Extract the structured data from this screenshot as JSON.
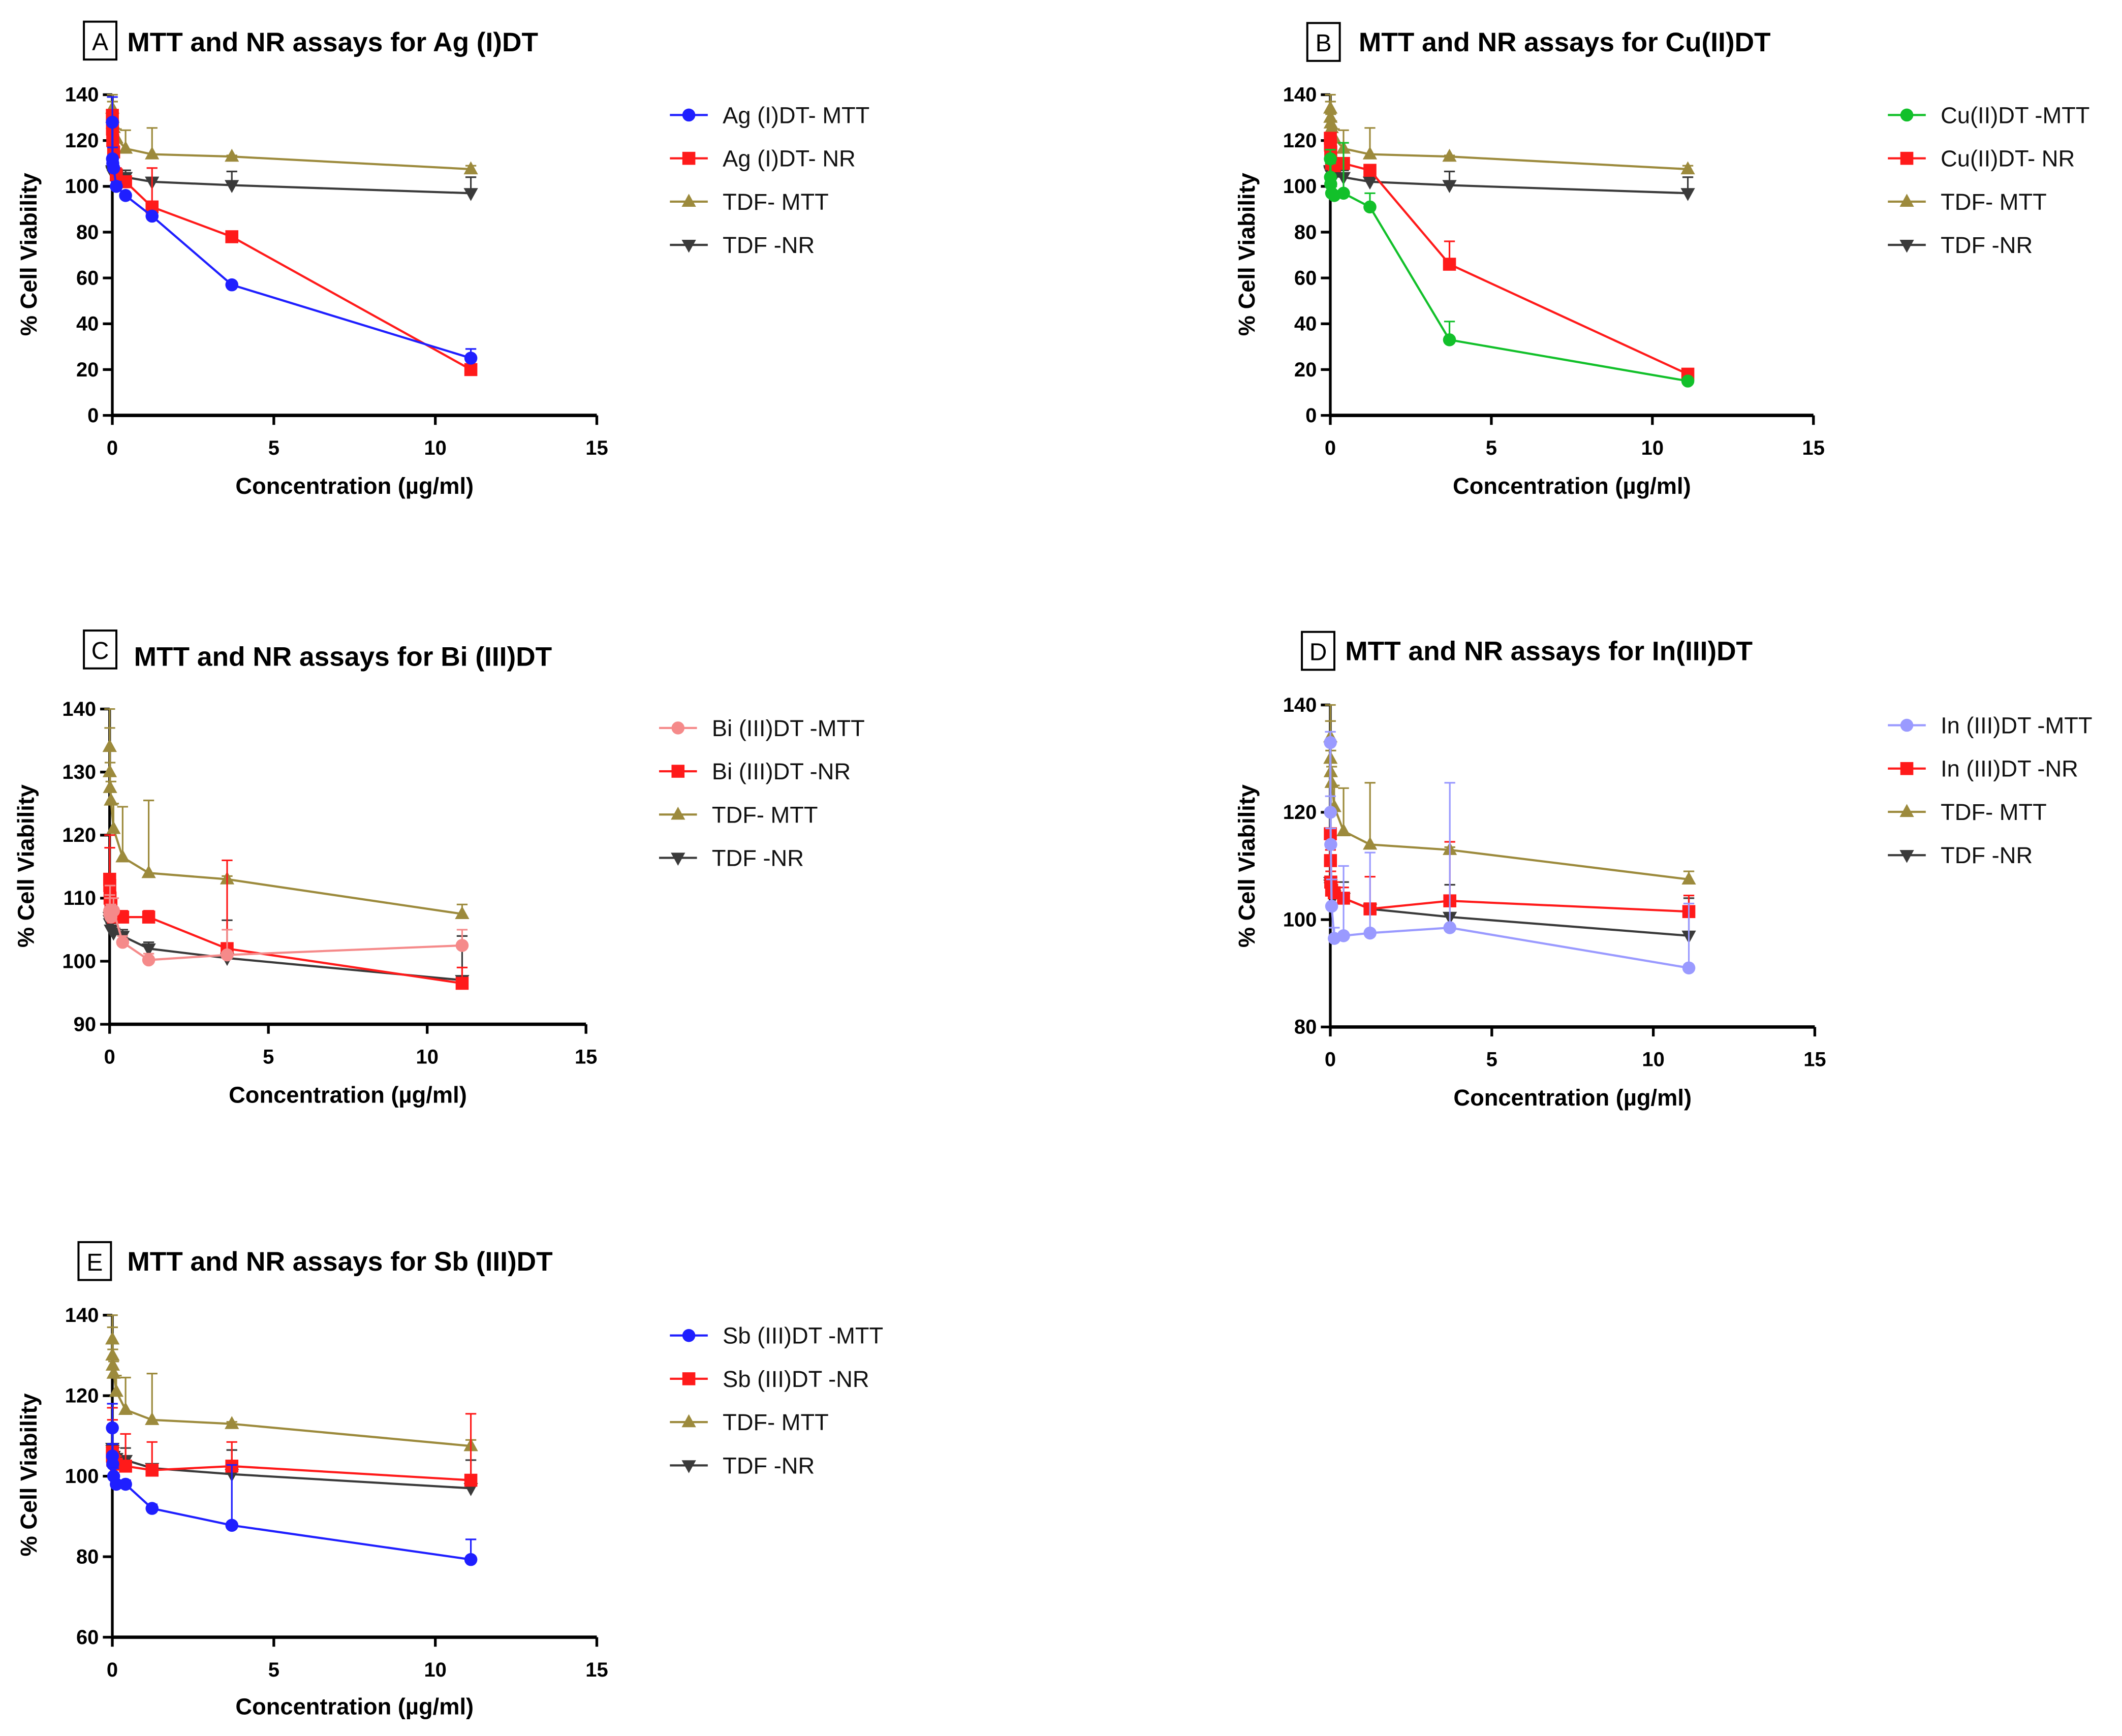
{
  "chart_data": [
    {
      "type": "line",
      "panel_letter": "A",
      "title": "MTT and NR assays for Ag (I)DT",
      "xlabel": "Concentration (µg/ml)",
      "ylabel": "% Cell Viability",
      "xlim": [
        0,
        15
      ],
      "ylim": [
        0,
        140
      ],
      "xticks": [
        "0",
        "5",
        "10",
        "15"
      ],
      "yticks": [
        "0",
        "20",
        "40",
        "60",
        "80",
        "100",
        "120",
        "140"
      ],
      "x": [
        0.0015,
        0.0046,
        0.0137,
        0.041,
        0.123,
        0.41,
        1.23,
        3.7,
        11.1
      ],
      "legend_position": "right",
      "series": [
        {
          "name": "Ag (I)DT- MTT",
          "color": "#1f1fff",
          "marker": "circle",
          "values": [
            128,
            112,
            110,
            108,
            100,
            96,
            87,
            57,
            25
          ],
          "err": [
            11,
            5,
            3,
            2,
            2,
            1,
            1,
            1,
            4
          ]
        },
        {
          "name": "Ag (I)DT- NR",
          "color": "#ff1a1a",
          "marker": "square",
          "values": [
            131,
            125,
            120,
            115,
            105,
            102,
            91,
            78,
            20
          ],
          "err": [
            2,
            6,
            3,
            2,
            3,
            2,
            17,
            2,
            1
          ]
        },
        {
          "name": "TDF- MTT",
          "color": "#9c8a3c",
          "marker": "triangle-up",
          "values": [
            134,
            130,
            127.5,
            125.5,
            121,
            116.5,
            114,
            113,
            107.5
          ],
          "err": [
            6,
            7,
            4,
            3,
            4,
            8,
            11.5,
            0.5,
            1.5
          ]
        },
        {
          "name": "TDF -NR",
          "color": "#3a3a3a",
          "marker": "triangle-down",
          "values": [
            107,
            106.5,
            106,
            105,
            104.5,
            104,
            102,
            100.5,
            97
          ],
          "err": [
            1,
            1,
            1,
            1,
            1,
            3,
            1,
            6,
            7
          ]
        }
      ]
    },
    {
      "type": "line",
      "panel_letter": "B",
      "title": "MTT and NR assays for Cu(II)DT",
      "xlabel": "Concentration (µg/ml)",
      "ylabel": "% Cell Viability",
      "xlim": [
        0,
        15
      ],
      "ylim": [
        0,
        140
      ],
      "xticks": [
        "0",
        "5",
        "10",
        "15"
      ],
      "yticks": [
        "0",
        "20",
        "40",
        "60",
        "80",
        "100",
        "120",
        "140"
      ],
      "x": [
        0.0015,
        0.0046,
        0.0137,
        0.041,
        0.123,
        0.41,
        1.23,
        3.7,
        11.1
      ],
      "legend_position": "right",
      "series": [
        {
          "name": "Cu(II)DT -MTT",
          "color": "#12c02a",
          "marker": "circle",
          "values": [
            112,
            104,
            101,
            97,
            96,
            97,
            91,
            33,
            15
          ],
          "err": [
            4,
            6,
            10,
            3,
            2,
            22,
            6,
            8,
            1
          ]
        },
        {
          "name": "Cu(II)DT- NR",
          "color": "#ff1a1a",
          "marker": "square",
          "values": [
            121,
            118,
            115,
            110,
            109,
            110,
            107,
            66,
            18
          ],
          "err": [
            2,
            2,
            2,
            2,
            2,
            2,
            2,
            10,
            1
          ]
        },
        {
          "name": "TDF- MTT",
          "color": "#9c8a3c",
          "marker": "triangle-up",
          "values": [
            134,
            130,
            127.5,
            125.5,
            121,
            116.5,
            114,
            113,
            107.5
          ],
          "err": [
            6,
            7,
            4,
            3,
            4,
            8,
            11.5,
            0.5,
            1.5
          ]
        },
        {
          "name": "TDF -NR",
          "color": "#3a3a3a",
          "marker": "triangle-down",
          "values": [
            107,
            106.5,
            106,
            105,
            104.5,
            104,
            102,
            100.5,
            97
          ],
          "err": [
            1,
            1,
            1,
            1,
            1,
            3,
            1,
            6,
            7
          ]
        }
      ]
    },
    {
      "type": "line",
      "panel_letter": "C",
      "title": "MTT and NR  assays for Bi (III)DT",
      "xlabel": "Concentration (µg/ml)",
      "ylabel": "% Cell Viability",
      "xlim": [
        0,
        15
      ],
      "ylim": [
        90,
        140
      ],
      "xticks": [
        "0",
        "5",
        "10",
        "15"
      ],
      "yticks": [
        "90",
        "100",
        "110",
        "120",
        "130",
        "140"
      ],
      "x": [
        0.0015,
        0.0046,
        0.0137,
        0.041,
        0.123,
        0.41,
        1.23,
        3.7,
        11.1
      ],
      "legend_position": "right",
      "series": [
        {
          "name": "Bi (III)DT -MTT",
          "color": "#f58a8a",
          "marker": "circle",
          "values": [
            108,
            107.5,
            108,
            107,
            108,
            103,
            100.2,
            101,
            102.5
          ],
          "err": [
            2,
            3,
            4,
            2,
            2,
            1,
            1,
            4,
            2.5
          ]
        },
        {
          "name": "Bi (III)DT -NR",
          "color": "#ff1a1a",
          "marker": "square",
          "values": [
            113,
            112,
            110,
            109,
            107,
            107,
            107,
            102,
            96.5
          ],
          "err": [
            7,
            6,
            2,
            2,
            1,
            1,
            1,
            14,
            2.5
          ]
        },
        {
          "name": "TDF- MTT",
          "color": "#9c8a3c",
          "marker": "triangle-up",
          "values": [
            134,
            130,
            127.5,
            125.5,
            121,
            116.5,
            114,
            113,
            107.5
          ],
          "err": [
            6,
            7,
            4,
            3,
            4,
            8,
            11.5,
            0.5,
            1.5
          ]
        },
        {
          "name": "TDF -NR",
          "color": "#3a3a3a",
          "marker": "triangle-down",
          "values": [
            107,
            106.5,
            106,
            105,
            104.5,
            104,
            102,
            100.5,
            97
          ],
          "err": [
            1,
            1,
            1,
            1,
            1,
            1,
            1,
            6,
            7
          ]
        }
      ]
    },
    {
      "type": "line",
      "panel_letter": "D",
      "title": "MTT and NR assays for  In(III)DT",
      "xlabel": "Concentration (µg/ml)",
      "ylabel": "% Cell Viability",
      "xlim": [
        0,
        15
      ],
      "ylim": [
        80,
        140
      ],
      "xticks": [
        "0",
        "5",
        "10",
        "15"
      ],
      "yticks": [
        "80",
        "100",
        "120",
        "140"
      ],
      "x": [
        0.0015,
        0.0046,
        0.0137,
        0.041,
        0.123,
        0.41,
        1.23,
        3.7,
        11.1
      ],
      "legend_position": "right",
      "series": [
        {
          "name": "In (III)DT -MTT",
          "color": "#9a9aff",
          "marker": "circle",
          "values": [
            133,
            120,
            114,
            102.5,
            96.5,
            97,
            97.5,
            98.5,
            91
          ],
          "err": [
            2,
            3,
            3,
            5,
            2,
            13,
            15,
            27,
            12
          ]
        },
        {
          "name": "In (III)DT -NR",
          "color": "#ff1a1a",
          "marker": "square",
          "values": [
            116,
            111,
            107,
            105.5,
            105,
            104,
            102,
            103.5,
            101.5
          ],
          "err": [
            4,
            2,
            2,
            2,
            2,
            2,
            6,
            11,
            3
          ]
        },
        {
          "name": "TDF- MTT",
          "color": "#9c8a3c",
          "marker": "triangle-up",
          "values": [
            134,
            130,
            127.5,
            125.5,
            121,
            116.5,
            114,
            113,
            107.5
          ],
          "err": [
            6,
            7,
            4,
            3,
            4,
            8,
            11.5,
            0.5,
            1.5
          ]
        },
        {
          "name": "TDF -NR",
          "color": "#3a3a3a",
          "marker": "triangle-down",
          "values": [
            107,
            106.5,
            106,
            105,
            104.5,
            104,
            102,
            100.5,
            97
          ],
          "err": [
            1,
            1,
            1,
            1,
            1,
            3,
            1,
            6,
            7
          ]
        }
      ]
    },
    {
      "type": "line",
      "panel_letter": "E",
      "title": "MTT and NR assays for Sb (III)DT",
      "xlabel": "Concentration (µg/ml)",
      "ylabel": "% Cell Viability",
      "xlim": [
        0,
        15
      ],
      "ylim": [
        60,
        140
      ],
      "xticks": [
        "0",
        "5",
        "10",
        "15"
      ],
      "yticks": [
        "60",
        "80",
        "100",
        "120",
        "140"
      ],
      "x": [
        0.0015,
        0.0046,
        0.0137,
        0.041,
        0.123,
        0.41,
        1.23,
        3.7,
        11.1
      ],
      "legend_position": "right",
      "series": [
        {
          "name": "Sb (III)DT -MTT",
          "color": "#1f1fff",
          "marker": "circle",
          "values": [
            112,
            105,
            103,
            100,
            98,
            98,
            92,
            87.8,
            79.3
          ],
          "err": [
            6,
            3,
            5,
            2,
            1,
            1,
            1,
            15,
            5
          ]
        },
        {
          "name": "Sb (III)DT -NR",
          "color": "#ff1a1a",
          "marker": "square",
          "values": [
            106,
            105,
            104,
            104,
            103,
            102.5,
            101.5,
            102.5,
            99
          ],
          "err": [
            11,
            9,
            4,
            3,
            2,
            8,
            7,
            6,
            16.5
          ]
        },
        {
          "name": "TDF- MTT",
          "color": "#9c8a3c",
          "marker": "triangle-up",
          "values": [
            134,
            130,
            127.5,
            125.5,
            121,
            116.5,
            114,
            113,
            107.5
          ],
          "err": [
            6,
            7,
            4,
            3,
            4,
            8,
            11.5,
            0.5,
            1.5
          ]
        },
        {
          "name": "TDF -NR",
          "color": "#3a3a3a",
          "marker": "triangle-down",
          "values": [
            107,
            106.5,
            106,
            105,
            104.5,
            104,
            102,
            100.5,
            97
          ],
          "err": [
            1,
            1,
            1,
            1,
            1,
            3,
            1,
            6,
            7
          ]
        }
      ]
    }
  ]
}
